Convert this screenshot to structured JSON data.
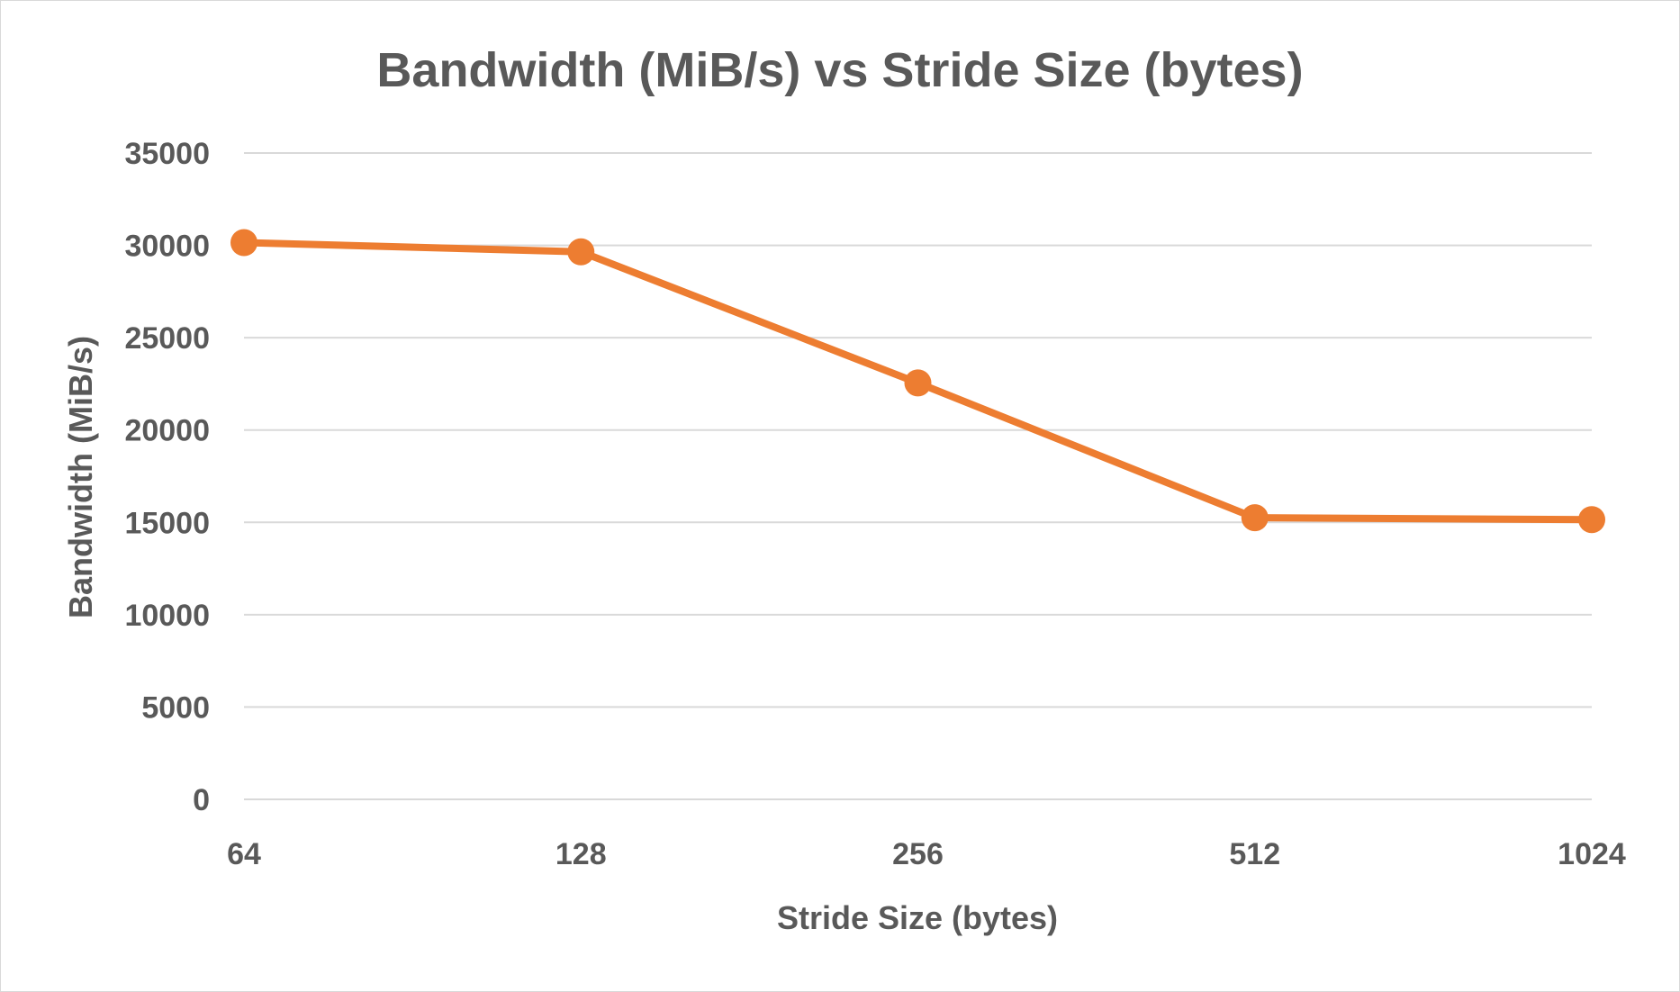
{
  "chart_data": {
    "type": "line",
    "title": "Bandwidth (MiB/s) vs Stride Size (bytes)",
    "xlabel": "Stride Size (bytes)",
    "ylabel": "Bandwidth (MiB/s)",
    "categories": [
      "64",
      "128",
      "256",
      "512",
      "1024"
    ],
    "series": [
      {
        "values": [
          30150,
          29650,
          22550,
          15250,
          15150
        ],
        "color": "#ed7d31"
      }
    ],
    "ylim": [
      0,
      35000
    ],
    "yticks": [
      "0",
      "5000",
      "10000",
      "15000",
      "20000",
      "25000",
      "30000",
      "35000"
    ],
    "grid": true,
    "legend": "none"
  }
}
